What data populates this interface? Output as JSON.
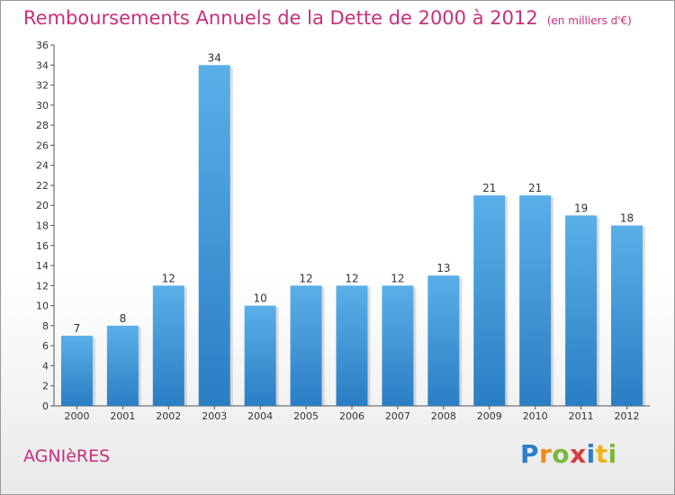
{
  "header": {
    "title": "Remboursements Annuels de la Dette de 2000 à 2012",
    "unit": "(en milliers d'€)"
  },
  "footer": {
    "town": "AGNIèRES",
    "logo_text": "Proxiti"
  },
  "colors": {
    "title": "#c8307a",
    "bar_light": "#5aafe8",
    "bar_dark": "#2a7ec4"
  },
  "chart_data": {
    "type": "bar",
    "title": "Remboursements Annuels de la Dette de 2000 à 2012",
    "xlabel": "",
    "ylabel": "",
    "categories": [
      "2000",
      "2001",
      "2002",
      "2003",
      "2004",
      "2005",
      "2006",
      "2007",
      "2008",
      "2009",
      "2010",
      "2011",
      "2012"
    ],
    "values": [
      7,
      8,
      12,
      34,
      10,
      12,
      12,
      12,
      13,
      21,
      21,
      19,
      18
    ],
    "ylim": [
      0,
      36
    ],
    "yticks": [
      0,
      2,
      4,
      6,
      8,
      10,
      12,
      14,
      16,
      18,
      20,
      22,
      24,
      26,
      28,
      30,
      32,
      34,
      36
    ],
    "grid": false,
    "data_labels": true
  }
}
